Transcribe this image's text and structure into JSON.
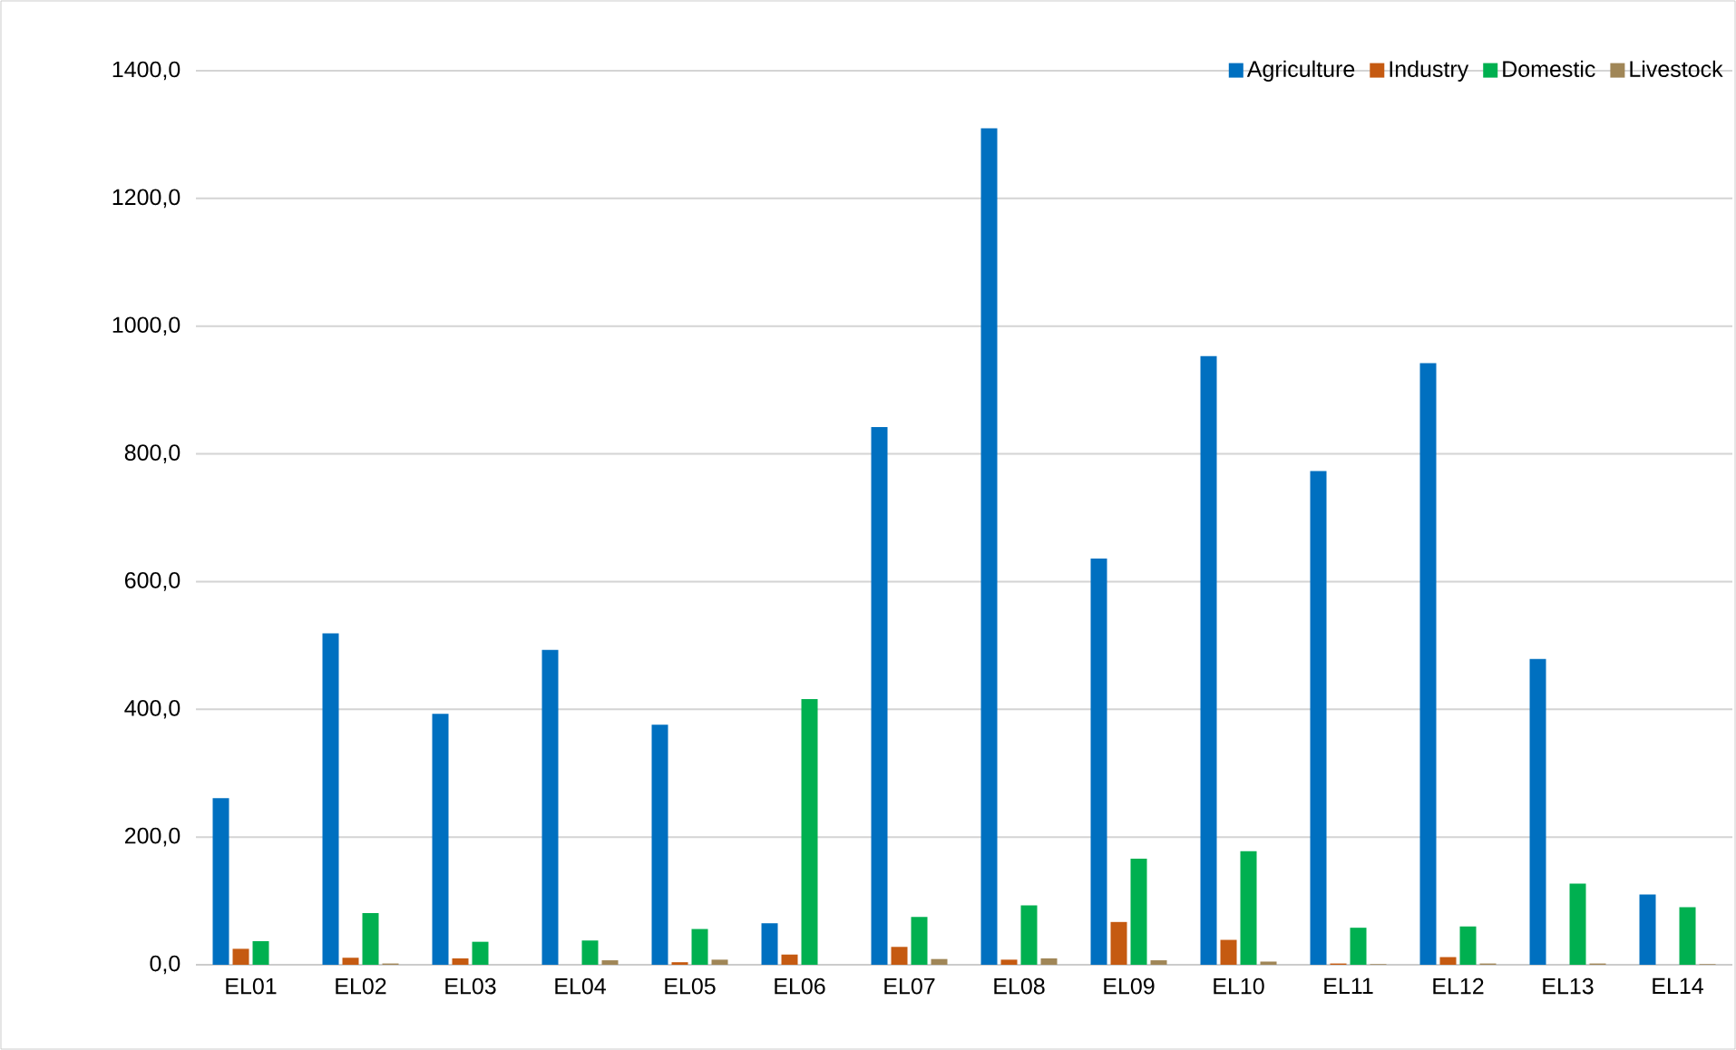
{
  "chart_data": {
    "type": "bar",
    "categories": [
      "EL01",
      "EL02",
      "EL03",
      "EL04",
      "EL05",
      "EL06",
      "EL07",
      "EL08",
      "EL09",
      "EL10",
      "EL11",
      "EL12",
      "EL13",
      "EL14"
    ],
    "series": [
      {
        "name": "Agriculture",
        "color": "#0070c0",
        "values": [
          261,
          519,
          393,
          493,
          376,
          65,
          842,
          1310,
          636,
          953,
          773,
          942,
          479,
          110
        ]
      },
      {
        "name": "Industry",
        "color": "#c55a11",
        "values": [
          25,
          11,
          10,
          0,
          4,
          16,
          28,
          8,
          67,
          39,
          2,
          12,
          0,
          0
        ]
      },
      {
        "name": "Domestic",
        "color": "#00b050",
        "values": [
          37,
          81,
          36,
          38,
          56,
          416,
          75,
          93,
          166,
          178,
          58,
          60,
          127,
          90
        ]
      },
      {
        "name": "Livestock",
        "color": "#a08657",
        "values": [
          0,
          2,
          0,
          7,
          8,
          0,
          9,
          10,
          7,
          5,
          1,
          2,
          2,
          1
        ]
      }
    ],
    "ylim": [
      0,
      1400
    ],
    "yticks": [
      {
        "value": 0,
        "label": "0,0"
      },
      {
        "value": 200,
        "label": "200,0"
      },
      {
        "value": 400,
        "label": "400,0"
      },
      {
        "value": 600,
        "label": "600,0"
      },
      {
        "value": 800,
        "label": "800,0"
      },
      {
        "value": 1000,
        "label": "1000,0"
      },
      {
        "value": 1200,
        "label": "1200,0"
      },
      {
        "value": 1400,
        "label": "1400,0"
      }
    ],
    "grid": "y",
    "legend": "top right"
  }
}
